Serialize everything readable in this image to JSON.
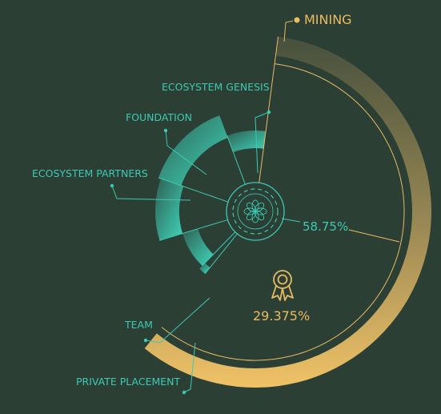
{
  "colors": {
    "background": "#2b3f35",
    "teal": "#3ec9b2",
    "gold": "#e9bb62"
  },
  "chart_data": {
    "type": "pie",
    "categories": [
      "MINING",
      "ECOSYSTEM GENESIS",
      "FOUNDATION",
      "ECOSYSTEM PARTNERS",
      "TEAM",
      "PRIVATE PLACEMENT"
    ],
    "values": [
      58.75,
      1.5,
      8.0,
      10.0,
      14.0,
      7.75
    ],
    "annotations": [
      {
        "label": "MINING",
        "value_text": "58.75%"
      },
      {
        "label": "MINING",
        "value_text": "29.375%",
        "icon": "award-ribbon-icon"
      }
    ]
  },
  "labels": {
    "mining": "MINING",
    "ecosystem_genesis": "ECOSYSTEM GENESIS",
    "foundation": "FOUNDATION",
    "ecosystem_partners": "ECOSYSTEM PARTNERS",
    "team": "TEAM",
    "private_placement": "PRIVATE PLACEMENT",
    "mining_percent": "58.75%",
    "mining_half_percent": "29.375%"
  }
}
